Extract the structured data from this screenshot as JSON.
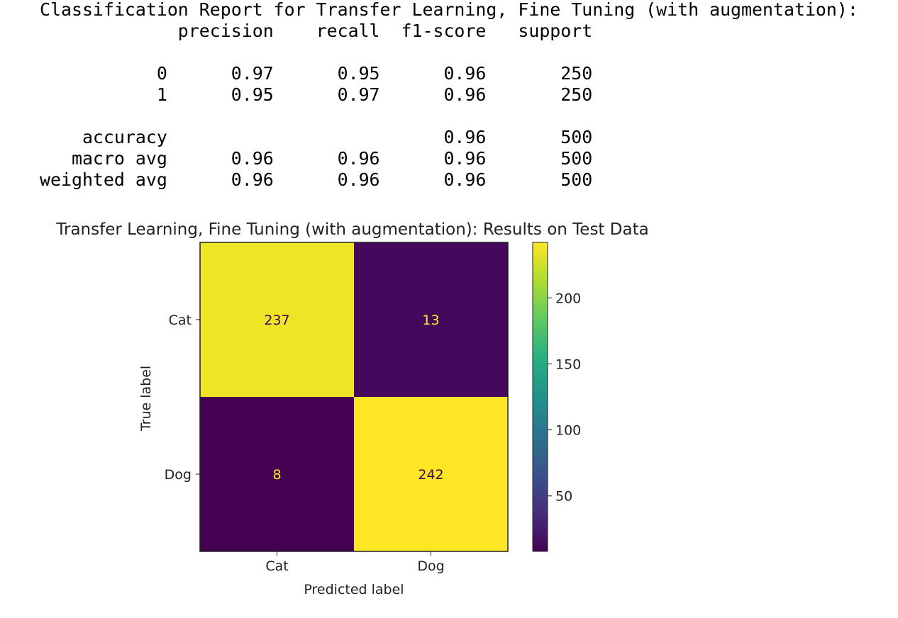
{
  "report": {
    "title": "Classification Report for Transfer Learning, Fine Tuning (with augmentation):",
    "columns": [
      "precision",
      "recall",
      "f1-score",
      "support"
    ],
    "rows": [
      {
        "label": "0",
        "precision": "0.97",
        "recall": "0.95",
        "f1": "0.96",
        "support": "250"
      },
      {
        "label": "1",
        "precision": "0.95",
        "recall": "0.97",
        "f1": "0.96",
        "support": "250"
      },
      null,
      {
        "label": "accuracy",
        "precision": "",
        "recall": "",
        "f1": "0.96",
        "support": "500"
      },
      {
        "label": "macro avg",
        "precision": "0.96",
        "recall": "0.96",
        "f1": "0.96",
        "support": "500"
      },
      {
        "label": "weighted avg",
        "precision": "0.96",
        "recall": "0.96",
        "f1": "0.96",
        "support": "500"
      }
    ]
  },
  "chart_data": {
    "type": "heatmap",
    "title": "Transfer Learning, Fine Tuning (with augmentation): Results on Test Data",
    "xlabel": "Predicted label",
    "ylabel": "True label",
    "x_categories": [
      "Cat",
      "Dog"
    ],
    "y_categories": [
      "Cat",
      "Dog"
    ],
    "matrix": [
      [
        237,
        13
      ],
      [
        8,
        242
      ]
    ],
    "colormap": "viridis",
    "colorbar": {
      "min": 8,
      "max": 242,
      "ticks": [
        50,
        100,
        150,
        200
      ]
    },
    "text_color_on_dark": "#fde725",
    "text_color_on_light": "#440154"
  }
}
